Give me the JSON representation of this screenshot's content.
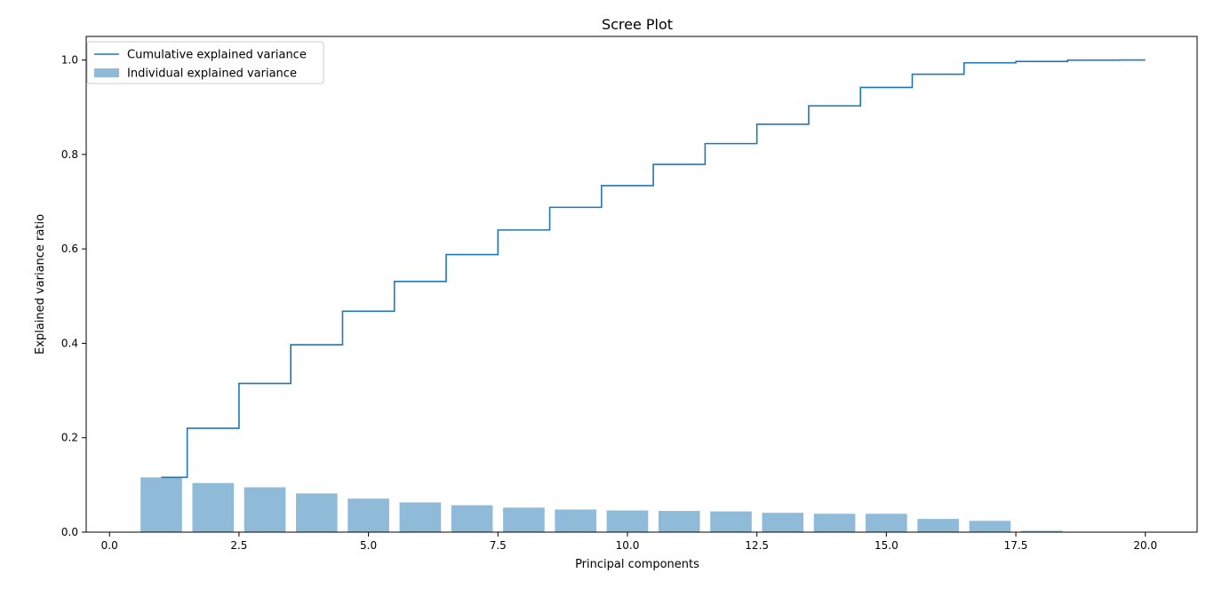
{
  "chart_data": {
    "type": "bar",
    "title": "Scree Plot",
    "xlabel": "Principal components",
    "ylabel": "Explained variance ratio",
    "xlim": [
      -0.45,
      21.0
    ],
    "ylim": [
      0.0,
      1.05
    ],
    "xticks": [
      0.0,
      2.5,
      5.0,
      7.5,
      10.0,
      12.5,
      15.0,
      17.5,
      20.0
    ],
    "xtick_labels": [
      "0.0",
      "2.5",
      "5.0",
      "7.5",
      "10.0",
      "12.5",
      "15.0",
      "17.5",
      "20.0"
    ],
    "yticks": [
      0.0,
      0.2,
      0.4,
      0.6,
      0.8,
      1.0
    ],
    "ytick_labels": [
      "0.0",
      "0.2",
      "0.4",
      "0.6",
      "0.8",
      "1.0"
    ],
    "grid": false,
    "legend": {
      "position": "upper-left",
      "entries": [
        {
          "label": "Cumulative explained variance",
          "kind": "line",
          "color": "#1f77b4"
        },
        {
          "label": "Individual explained variance",
          "kind": "bar",
          "color": "#1f77b4",
          "alpha": 0.5
        }
      ]
    },
    "series": [
      {
        "name": "Individual explained variance",
        "kind": "bar",
        "color": "#1f77b4",
        "alpha": 0.5,
        "x": [
          1,
          2,
          3,
          4,
          5,
          6,
          7,
          8,
          9,
          10,
          11,
          12,
          13,
          14,
          15,
          16,
          17,
          18,
          19,
          20
        ],
        "values": [
          0.116,
          0.104,
          0.095,
          0.082,
          0.071,
          0.063,
          0.057,
          0.052,
          0.048,
          0.046,
          0.045,
          0.044,
          0.041,
          0.039,
          0.039,
          0.028,
          0.024,
          0.003,
          0.0002,
          0.0001
        ]
      },
      {
        "name": "Cumulative explained variance",
        "kind": "step",
        "where": "mid",
        "color": "#1f77b4",
        "x": [
          1,
          2,
          3,
          4,
          5,
          6,
          7,
          8,
          9,
          10,
          11,
          12,
          13,
          14,
          15,
          16,
          17,
          18,
          19,
          20
        ],
        "values": [
          0.116,
          0.22,
          0.315,
          0.397,
          0.468,
          0.531,
          0.588,
          0.64,
          0.688,
          0.734,
          0.779,
          0.823,
          0.864,
          0.903,
          0.942,
          0.97,
          0.994,
          0.997,
          0.9998,
          1.0
        ]
      }
    ]
  }
}
